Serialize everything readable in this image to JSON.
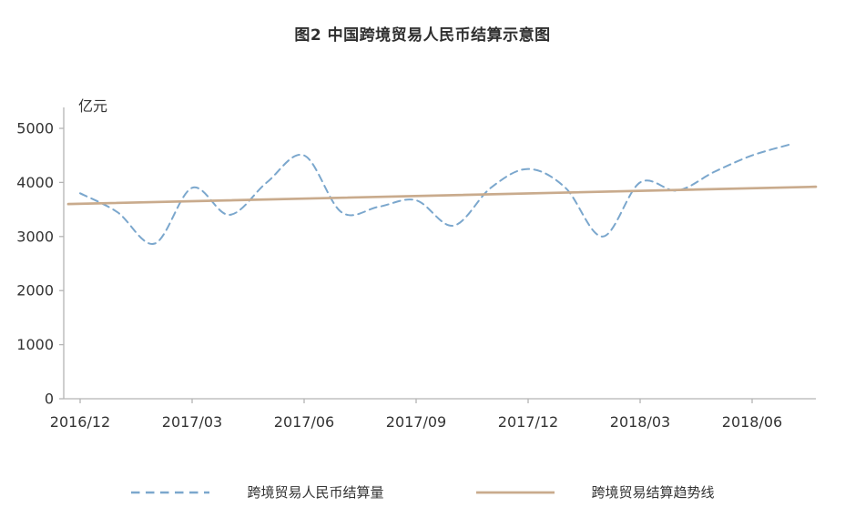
{
  "title": "图2 中国跨境贸易人民币结算示意图",
  "chart_data": {
    "type": "line",
    "title": "图2 中国跨境贸易人民币结算示意图",
    "ylabel": "亿元",
    "xlabel": "",
    "ylim": [
      0,
      5000
    ],
    "y_ticks": [
      0,
      1000,
      2000,
      3000,
      4000,
      5000
    ],
    "x_tick_labels": [
      "2016/12",
      "2017/03",
      "2017/06",
      "2017/09",
      "2017/12",
      "2018/03",
      "2018/06"
    ],
    "grid": false,
    "legend_position": "bottom",
    "x": [
      "2016/12",
      "2017/01",
      "2017/02",
      "2017/03",
      "2017/04",
      "2017/05",
      "2017/06",
      "2017/07",
      "2017/08",
      "2017/09",
      "2017/10",
      "2017/11",
      "2017/12",
      "2018/01",
      "2018/02",
      "2018/03",
      "2018/04",
      "2018/05",
      "2018/06",
      "2018/07"
    ],
    "series": [
      {
        "name": "跨境贸易人民币结算量",
        "style": "dashed",
        "color": "#7ba7cd",
        "values": [
          3800,
          3450,
          2870,
          3900,
          3400,
          4000,
          4500,
          3450,
          3550,
          3670,
          3200,
          3900,
          4250,
          3900,
          3000,
          4000,
          3850,
          4200,
          4500,
          4700
        ]
      },
      {
        "name": "跨境贸易结算趋势线",
        "style": "solid",
        "color": "#c9ab8d",
        "x_span": [
          "2016/12",
          "2018/07"
        ],
        "values": [
          3600,
          3920
        ]
      }
    ]
  }
}
